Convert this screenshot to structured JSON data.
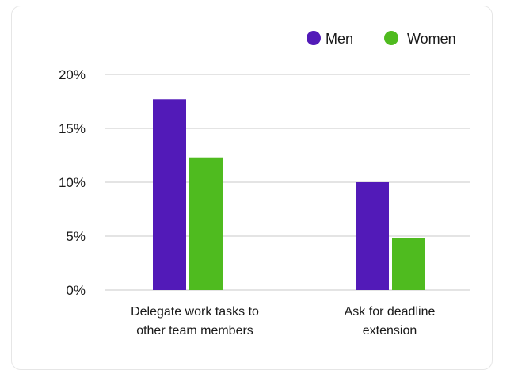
{
  "chart_data": {
    "type": "bar",
    "categories": [
      [
        "Delegate work tasks to",
        "other team members"
      ],
      [
        "Ask for deadline",
        "extension"
      ]
    ],
    "series": [
      {
        "name": "Men",
        "color": "#521ab8",
        "values": [
          17.7,
          10.0
        ]
      },
      {
        "name": "Women",
        "color": "#4fbb1f",
        "values": [
          12.3,
          4.8
        ]
      }
    ],
    "y_ticks": [
      "0%",
      "5%",
      "10%",
      "15%",
      "20%"
    ],
    "ylim": [
      0,
      20
    ],
    "grid": true,
    "legend_position": "top-right",
    "title": "",
    "xlabel": "",
    "ylabel": ""
  }
}
